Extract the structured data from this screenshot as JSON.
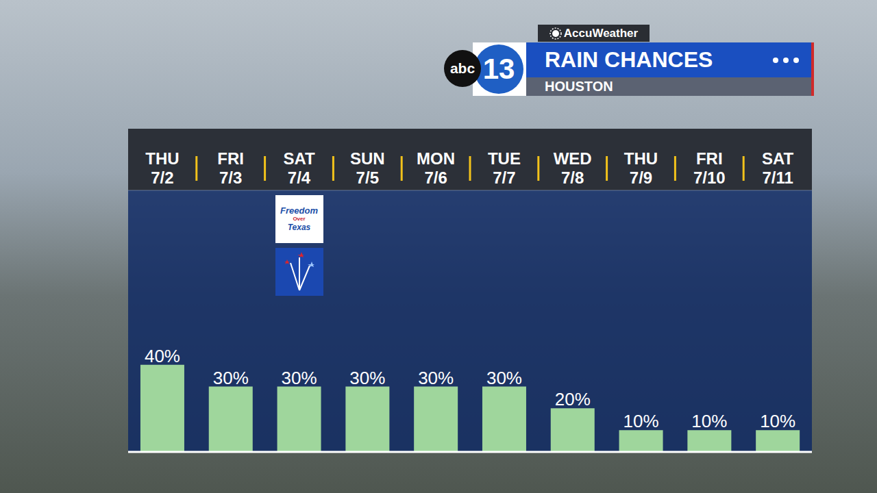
{
  "chart_data": {
    "type": "bar",
    "title": "RAIN CHANCES",
    "subtitle": "HOUSTON",
    "source": "AccuWeather",
    "station": [
      "abc",
      "13"
    ],
    "categories": [
      "THU 7/2",
      "FRI 7/3",
      "SAT 7/4",
      "SUN 7/5",
      "MON 7/6",
      "TUE 7/7",
      "WED 7/8",
      "THU 7/9",
      "FRI 7/10",
      "SAT 7/11"
    ],
    "values": [
      40,
      30,
      30,
      30,
      30,
      30,
      20,
      10,
      10,
      10
    ],
    "value_labels": [
      "40%",
      "30%",
      "30%",
      "30%",
      "30%",
      "30%",
      "20%",
      "10%",
      "10%",
      "10%"
    ],
    "color": "#9fd69c",
    "ylim": [
      0,
      120
    ],
    "yticks": [
      0,
      20,
      40,
      60,
      80,
      100,
      120
    ],
    "grid": true,
    "data_labels": true,
    "tick_labels": "x",
    "annotations": [
      {
        "category": "SAT 7/4",
        "text": "Freedom Over Texas"
      }
    ]
  }
}
